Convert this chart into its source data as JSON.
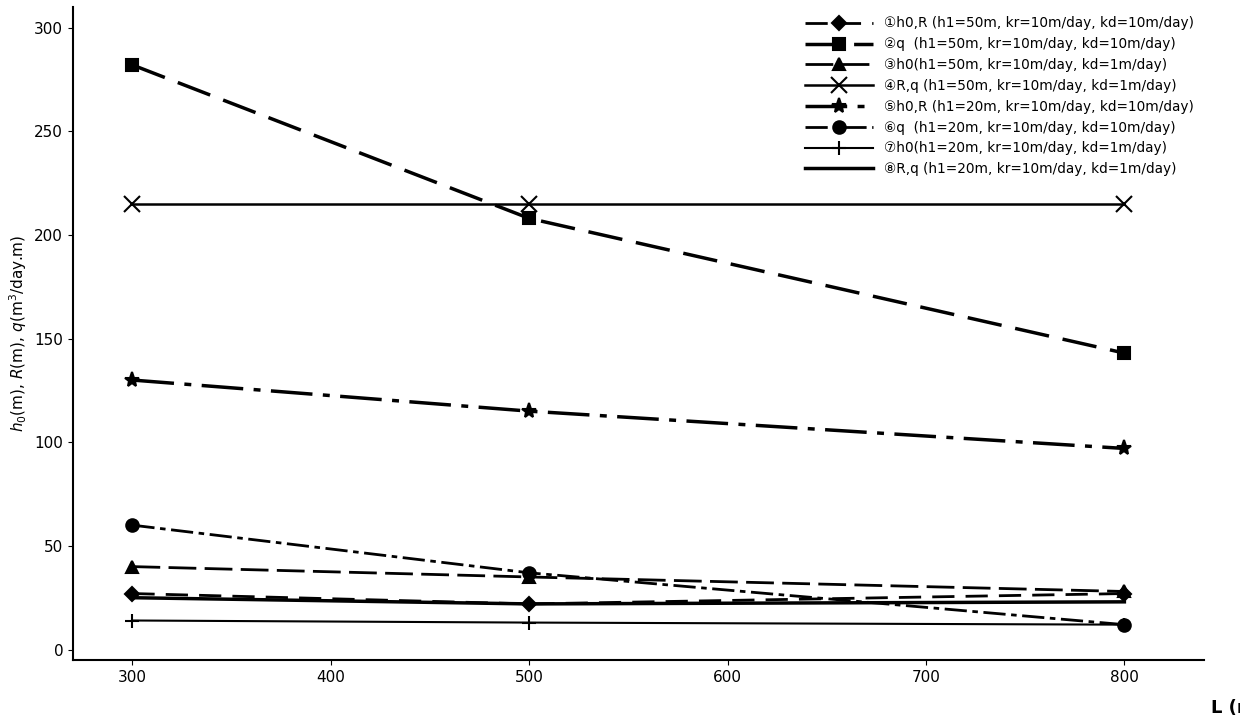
{
  "x": [
    300,
    500,
    800
  ],
  "series": [
    {
      "label": "①h0,R (h1=50m, kr=10m/day, kd=10m/day)",
      "y": [
        27,
        22,
        27
      ],
      "marker": "D",
      "markersize": 7,
      "linewidth": 2.0,
      "color": "black",
      "linestyle_key": "dashed_diamond"
    },
    {
      "label": "②q  (h1=50m, kr=10m/day, kd=10m/day)",
      "y": [
        282,
        208,
        143
      ],
      "marker": "s",
      "markersize": 9,
      "linewidth": 2.5,
      "color": "black",
      "linestyle_key": "heavy_dashed"
    },
    {
      "label": "③h0(h1=50m, kr=10m/day, kd=1m/day)",
      "y": [
        40,
        35,
        28
      ],
      "marker": "^",
      "markersize": 9,
      "linewidth": 2.0,
      "color": "black",
      "linestyle_key": "solid_arrow"
    },
    {
      "label": "④R,q (h1=50m, kr=10m/day, kd=1m/day)",
      "y": [
        215,
        215,
        215
      ],
      "marker": "x",
      "markersize": 11,
      "linewidth": 1.8,
      "color": "black",
      "linestyle_key": "solid_x"
    },
    {
      "label": "⑤h0,R (h1=20m, kr=10m/day, kd=10m/day)",
      "y": [
        130,
        115,
        97
      ],
      "marker": "*",
      "markersize": 11,
      "linewidth": 2.5,
      "color": "black",
      "linestyle_key": "long_dash_dot"
    },
    {
      "label": "⑥q  (h1=20m, kr=10m/day, kd=10m/day)",
      "y": [
        60,
        37,
        12
      ],
      "marker": "o",
      "markersize": 9,
      "linewidth": 2.0,
      "color": "black",
      "linestyle_key": "dot_dash"
    },
    {
      "label": "⑦h0(h1=20m, kr=10m/day, kd=1m/day)",
      "y": [
        14,
        13,
        12
      ],
      "marker": "+",
      "markersize": 10,
      "linewidth": 1.5,
      "color": "black",
      "linestyle_key": "solid_plus"
    },
    {
      "label": "⑧R,q (h1=20m, kr=10m/day, kd=1m/day)",
      "y": [
        25,
        22,
        23
      ],
      "marker": null,
      "markersize": 8,
      "linewidth": 2.5,
      "color": "black",
      "linestyle_key": "solid_thick"
    }
  ],
  "xlabel": "L (m)",
  "ylabel": "$h_0$(m), $R$(m), $q$(m$^3$/day.m)",
  "xlim": [
    270,
    840
  ],
  "ylim": [
    -5,
    310
  ],
  "xticks": [
    300,
    400,
    500,
    600,
    700,
    800
  ],
  "yticks": [
    0,
    50,
    100,
    150,
    200,
    250,
    300
  ],
  "legend_loc": "upper right",
  "background_color": "white",
  "figsize": [
    12.4,
    7.18
  ],
  "dpi": 100
}
